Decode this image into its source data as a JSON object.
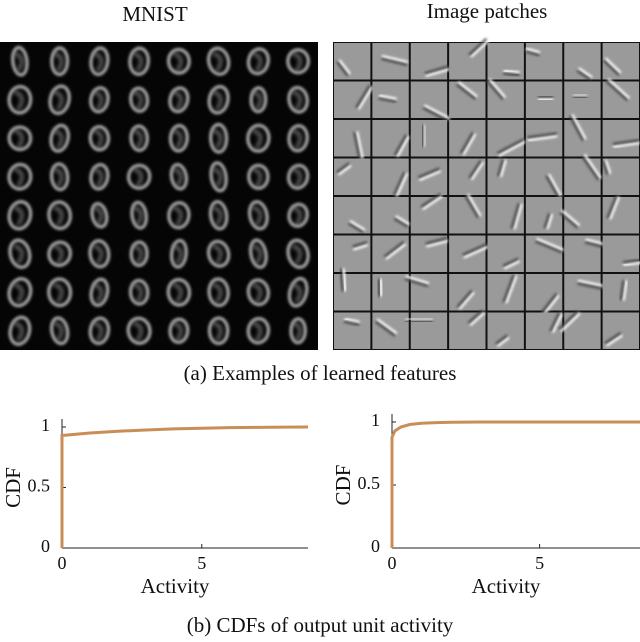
{
  "figure": {
    "panel_a": {
      "titles": [
        "MNIST",
        "Image patches"
      ],
      "caption": "(a) Examples of learned features"
    },
    "panel_b": {
      "caption": "(b) CDFs of output unit activity"
    }
  },
  "chart_data": [
    {
      "type": "line",
      "xlabel": "Activity",
      "ylabel": "CDF",
      "x": [
        0,
        0,
        0.5,
        1,
        2,
        3,
        4,
        5,
        6,
        7,
        8,
        8.8
      ],
      "values": [
        0,
        0.93,
        0.94,
        0.95,
        0.965,
        0.975,
        0.985,
        0.99,
        0.995,
        0.997,
        0.999,
        1
      ],
      "color": "#c98d58",
      "xlim": [
        0,
        8.8
      ],
      "ylim": [
        0,
        1
      ],
      "xticks": [
        0,
        5
      ],
      "yticks": [
        0,
        0.5,
        1
      ]
    },
    {
      "type": "line",
      "xlabel": "Activity",
      "ylabel": "CDF",
      "x": [
        0,
        0,
        0.1,
        0.3,
        0.6,
        1,
        1.5,
        2,
        3,
        5,
        8.4
      ],
      "values": [
        0,
        0.88,
        0.93,
        0.96,
        0.98,
        0.99,
        0.995,
        0.998,
        1,
        1,
        1
      ],
      "color": "#c98d58",
      "xlim": [
        0,
        8.4
      ],
      "ylim": [
        0,
        1
      ],
      "xticks": [
        0,
        5
      ],
      "yticks": [
        0,
        0.5,
        1
      ]
    }
  ]
}
